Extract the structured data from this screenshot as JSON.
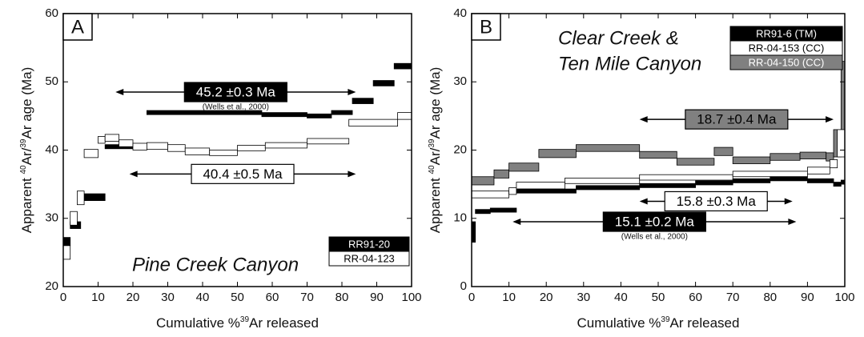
{
  "chart_data": [
    {
      "type": "step",
      "panel": "A",
      "title": [
        "Pine Creek Canyon"
      ],
      "xlabel": {
        "text": "Cumulative %",
        "sup": "39",
        "post": "Ar released"
      },
      "ylabel": {
        "pre": "Apparent ",
        "sup1": "40",
        "mid": "Ar/",
        "sup2": "39",
        "post": "Ar age (Ma)"
      },
      "xlim": [
        0,
        100
      ],
      "xticks": [
        0,
        10,
        20,
        30,
        40,
        50,
        60,
        70,
        80,
        90,
        100
      ],
      "ylim": [
        20,
        60
      ],
      "yticks": [
        20,
        30,
        40,
        50,
        60
      ],
      "legend": "lower right",
      "series": [
        {
          "name": "RR91-20",
          "color": "#000000",
          "bins": [
            0,
            2,
            5,
            12,
            24,
            57,
            70,
            77,
            83,
            89,
            95,
            100
          ],
          "values": [
            26.6,
            29,
            33.1,
            40.5,
            45.5,
            45.2,
            45,
            45.5,
            47.2,
            49.8,
            52.3
          ],
          "errors": [
            0.6,
            0.5,
            0.5,
            0.3,
            0.3,
            0.3,
            0.3,
            0.3,
            0.4,
            0.4,
            0.4
          ]
        },
        {
          "name": "RR-04-123",
          "color": "#ffffff",
          "bins": [
            0,
            2,
            4,
            6,
            10,
            12,
            16,
            20,
            24,
            30,
            35,
            42,
            50,
            58,
            70,
            82,
            96,
            100
          ],
          "values": [
            25,
            30,
            33,
            39.5,
            41.5,
            41.8,
            41,
            40.5,
            40.6,
            40.3,
            39.8,
            39.6,
            40.3,
            40.7,
            41.3,
            44,
            45
          ],
          "errors": [
            1,
            1,
            1,
            0.6,
            0.5,
            0.5,
            0.5,
            0.5,
            0.5,
            0.5,
            0.5,
            0.4,
            0.4,
            0.4,
            0.4,
            0.5,
            0.5
          ]
        }
      ],
      "plateaus": [
        {
          "label": "45.2 ±0.3 Ma",
          "note": "(Wells et al., 2000)",
          "color": "#000000",
          "x": [
            15,
            84
          ],
          "y": 48.5
        },
        {
          "label": "40.4 ±0.5 Ma",
          "color": "#ffffff",
          "x": [
            19,
            84
          ],
          "y": 36.5
        }
      ]
    },
    {
      "type": "step",
      "panel": "B",
      "title": [
        "Clear Creek &",
        "Ten Mile Canyon"
      ],
      "xlabel": {
        "text": "Cumulative %",
        "sup": "39",
        "post": "Ar released"
      },
      "ylabel": {
        "pre": "Apparent ",
        "sup1": "40",
        "mid": "Ar/",
        "sup2": "39",
        "post": "Ar age (Ma)"
      },
      "xlim": [
        0,
        100
      ],
      "xticks": [
        0,
        10,
        20,
        30,
        40,
        50,
        60,
        70,
        80,
        90,
        100
      ],
      "ylim": [
        0,
        40
      ],
      "yticks": [
        0,
        10,
        20,
        30,
        40
      ],
      "legend": "upper right",
      "series": [
        {
          "name": "RR-04-150 (CC)",
          "color": "#808080",
          "bins": [
            0,
            6,
            10,
            18,
            28,
            45,
            55,
            65,
            70,
            80,
            88,
            95,
            97,
            99,
            100
          ],
          "values": [
            15.5,
            16.5,
            17.5,
            19.5,
            20.3,
            19.3,
            18.3,
            19.8,
            18.5,
            19,
            19.2,
            19,
            21,
            27
          ],
          "errors": [
            0.6,
            0.6,
            0.6,
            0.6,
            0.5,
            0.5,
            0.5,
            0.6,
            0.5,
            0.5,
            0.5,
            0.6,
            2,
            6
          ]
        },
        {
          "name": "RR-04-153 (CC)",
          "color": "#ffffff",
          "bins": [
            0,
            10,
            12,
            25,
            45,
            70,
            90,
            96,
            98,
            100
          ],
          "values": [
            13.5,
            14,
            14.8,
            15.5,
            16,
            16.5,
            17,
            18,
            21
          ],
          "errors": [
            0.5,
            0.5,
            0.5,
            0.4,
            0.4,
            0.4,
            0.5,
            0.6,
            2
          ]
        },
        {
          "name": "RR91-6 (TM)",
          "color": "#000000",
          "bins": [
            0,
            1,
            5,
            12,
            28,
            45,
            60,
            70,
            80,
            90,
            97,
            99,
            100
          ],
          "values": [
            8,
            11,
            11.2,
            14,
            14.5,
            14.8,
            15.2,
            15.5,
            15.8,
            15.5,
            15,
            15.3
          ],
          "errors": [
            1.5,
            0.3,
            0.3,
            0.3,
            0.3,
            0.3,
            0.3,
            0.3,
            0.3,
            0.3,
            0.3,
            0.3
          ]
        }
      ],
      "legend_order": [
        2,
        1,
        0
      ],
      "plateaus": [
        {
          "label": "18.7 ±0.4 Ma",
          "color": "#808080",
          "x": [
            45,
            97
          ],
          "y": 24.5
        },
        {
          "label": "15.8 ±0.3 Ma",
          "color": "#ffffff",
          "x": [
            45,
            86
          ],
          "y": 12.5
        },
        {
          "label": "15.1 ±0.2 Ma",
          "note": "(Wells et al., 2000)",
          "color": "#000000",
          "x": [
            11,
            87
          ],
          "y": 9.5
        }
      ]
    }
  ]
}
